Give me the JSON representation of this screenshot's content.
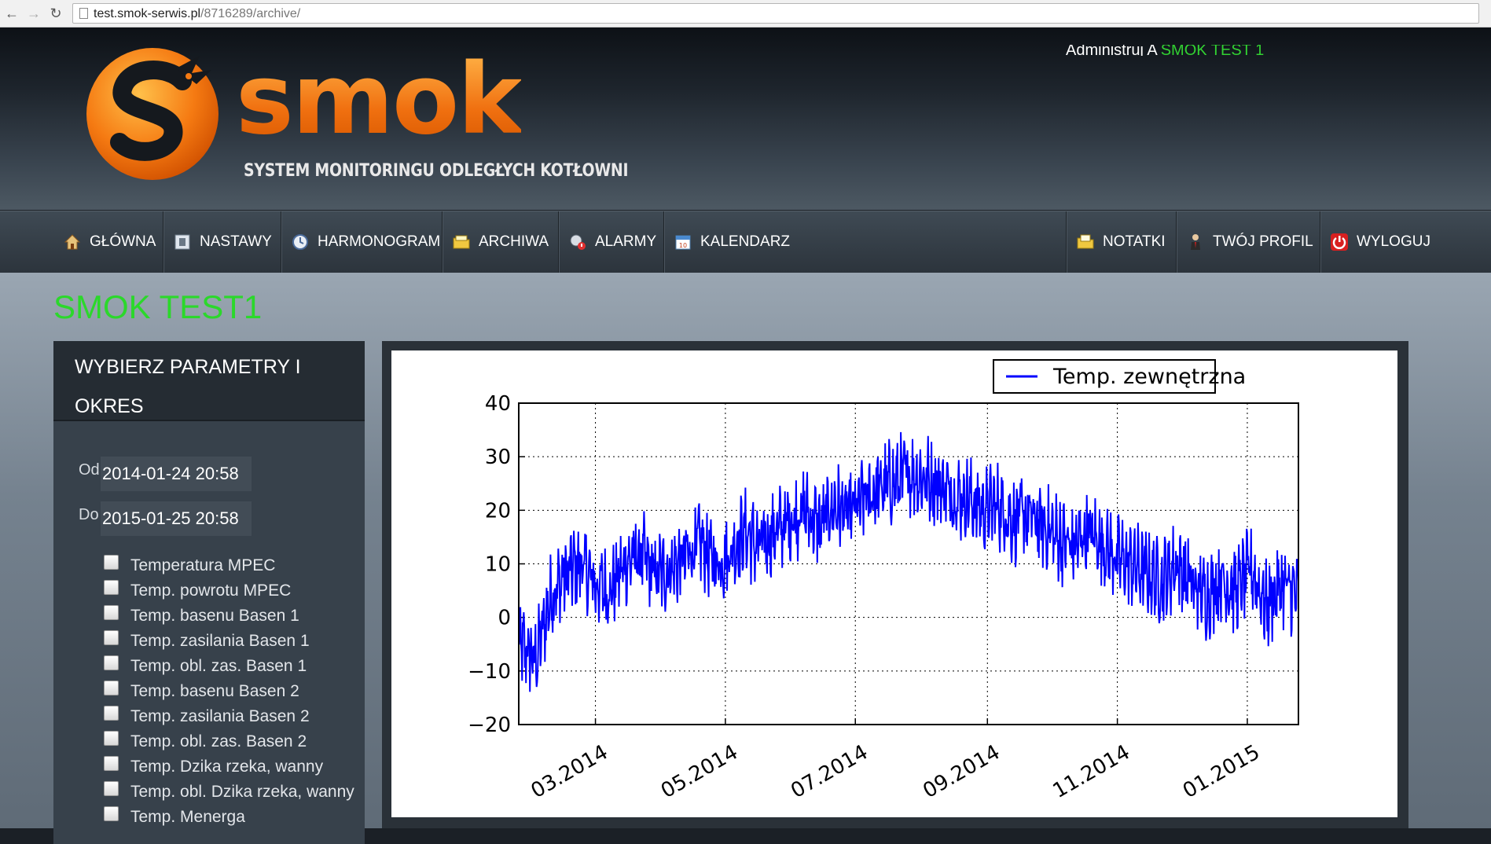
{
  "browser": {
    "url_host": "test.smok-serwis.pl",
    "url_path": "/8716289/archive/"
  },
  "header": {
    "admin_text": "Administruj A",
    "admin_link": "SMOK TEST 1",
    "logo_word": "smok",
    "logo_tagline": "SYSTEM MONITORINGU ODLEGŁYCH KOTŁOWNI"
  },
  "nav": {
    "items": [
      {
        "label": "GŁÓWNA",
        "icon": "home-icon"
      },
      {
        "label": "NASTAWY",
        "icon": "settings-icon"
      },
      {
        "label": "HARMONOGRAM",
        "icon": "clock-icon"
      },
      {
        "label": "ARCHIWA",
        "icon": "folder-icon"
      },
      {
        "label": "ALARMY",
        "icon": "alarm-icon"
      },
      {
        "label": "KALENDARZ",
        "icon": "calendar-icon"
      },
      {
        "label": "NOTATKI",
        "icon": "notes-icon"
      },
      {
        "label": "TWÓJ PROFIL",
        "icon": "user-icon"
      },
      {
        "label": "WYLOGUJ",
        "icon": "power-icon"
      }
    ]
  },
  "page": {
    "title": "SMOK TEST1"
  },
  "sidebar": {
    "heading": "WYBIERZ PARAMETRY I OKRES",
    "from_label": "Od",
    "from_value": "2014-01-24 20:58",
    "to_label": "Do",
    "to_value": "2015-01-25 20:58",
    "params": [
      "Temperatura MPEC",
      "Temp. powrotu MPEC",
      "Temp. basenu Basen 1",
      "Temp. zasilania Basen 1",
      "Temp. obl. zas. Basen 1",
      "Temp. basenu Basen 2",
      "Temp. zasilania Basen 2",
      "Temp. obl. zas. Basen 2",
      "Temp. Dzika rzeka, wanny",
      "Temp. obl. Dzika rzeka, wanny",
      "Temp. Menerga"
    ]
  },
  "chart_data": {
    "type": "line",
    "series": [
      {
        "name": "Temp. zewnętrzna",
        "color": "#0000ff",
        "x": [
          "2014-01-24",
          "2014-02-01",
          "2014-02-08",
          "2014-02-15",
          "2014-02-22",
          "2014-03-01",
          "2014-03-08",
          "2014-03-15",
          "2014-03-22",
          "2014-03-29",
          "2014-04-05",
          "2014-04-12",
          "2014-04-19",
          "2014-04-26",
          "2014-05-03",
          "2014-05-10",
          "2014-05-17",
          "2014-05-24",
          "2014-05-31",
          "2014-06-07",
          "2014-06-14",
          "2014-06-21",
          "2014-06-28",
          "2014-07-05",
          "2014-07-12",
          "2014-07-19",
          "2014-07-26",
          "2014-08-02",
          "2014-08-09",
          "2014-08-16",
          "2014-08-23",
          "2014-08-30",
          "2014-09-06",
          "2014-09-13",
          "2014-09-20",
          "2014-09-27",
          "2014-10-04",
          "2014-10-11",
          "2014-10-18",
          "2014-10-25",
          "2014-11-01",
          "2014-11-08",
          "2014-11-15",
          "2014-11-22",
          "2014-11-29",
          "2014-12-06",
          "2014-12-13",
          "2014-12-20",
          "2014-12-27",
          "2015-01-03",
          "2015-01-10",
          "2015-01-17",
          "2015-01-25"
        ],
        "values": [
          -5,
          -8,
          4,
          8,
          10,
          6,
          5,
          10,
          12,
          8,
          9,
          11,
          14,
          10,
          12,
          16,
          13,
          16,
          18,
          20,
          17,
          21,
          19,
          22,
          24,
          25,
          27,
          26,
          25,
          23,
          22,
          20,
          21,
          18,
          19,
          17,
          15,
          13,
          16,
          14,
          11,
          10,
          8,
          7,
          10,
          6,
          4,
          7,
          5,
          9,
          2,
          6,
          4
        ]
      }
    ],
    "xticks": [
      "03.2014",
      "05.2014",
      "07.2014",
      "09.2014",
      "11.2014",
      "01.2015"
    ],
    "xlim": [
      "2014-01-24",
      "2015-01-25"
    ],
    "ylim": [
      -20,
      40
    ],
    "yticks": [
      -20,
      -10,
      0,
      10,
      20,
      30,
      40
    ],
    "grid": true,
    "legend": "top-right"
  }
}
